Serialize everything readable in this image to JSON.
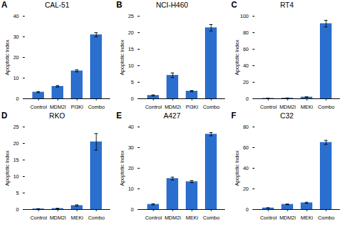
{
  "chart_data": [
    {
      "type": "bar",
      "label": "A",
      "title": "CAL-51",
      "ylabel": "Apoptotic Index",
      "categories": [
        "Control",
        "MDM2i",
        "PI3Ki",
        "Combo"
      ],
      "values": [
        3.2,
        6.0,
        13.5,
        31.0
      ],
      "errors": [
        0.3,
        0.4,
        0.5,
        1.0
      ],
      "color": "#2b6fce",
      "ylim": [
        0,
        40
      ],
      "yticks": [
        0,
        10,
        20,
        30,
        40
      ],
      "grid": false
    },
    {
      "type": "bar",
      "label": "B",
      "title": "NCI-H460",
      "ylabel": "Apoptotic Index",
      "categories": [
        "Control",
        "MDM2i",
        "PI3Ki",
        "Combo"
      ],
      "values": [
        1.0,
        7.1,
        2.3,
        21.5
      ],
      "errors": [
        0.15,
        0.7,
        0.2,
        1.0
      ],
      "color": "#2b6fce",
      "ylim": [
        0,
        25
      ],
      "yticks": [
        0,
        5,
        10,
        15,
        20,
        25
      ],
      "grid": false
    },
    {
      "type": "bar",
      "label": "C",
      "title": "RT4",
      "ylabel": "Apoptotic Index",
      "categories": [
        "Control",
        "MDM2i",
        "MEKi",
        "Combo"
      ],
      "values": [
        0.5,
        0.8,
        2.0,
        91.0
      ],
      "errors": [
        0.1,
        0.1,
        0.3,
        4.0
      ],
      "color": "#2b6fce",
      "ylim": [
        0,
        100
      ],
      "yticks": [
        0,
        20,
        40,
        60,
        80,
        100
      ],
      "grid": false
    },
    {
      "type": "bar",
      "label": "D",
      "title": "RKO",
      "ylabel": "Apoptotic Index",
      "categories": [
        "Control",
        "MDM2i",
        "MEKi",
        "Combo"
      ],
      "values": [
        0.2,
        0.3,
        1.2,
        20.5
      ],
      "errors": [
        0.05,
        0.05,
        0.2,
        2.5
      ],
      "color": "#2b6fce",
      "ylim": [
        0,
        25
      ],
      "yticks": [
        0,
        5,
        10,
        15,
        20,
        25
      ],
      "grid": false
    },
    {
      "type": "bar",
      "label": "E",
      "title": "A427",
      "ylabel": "Apoptotic Index",
      "categories": [
        "Control",
        "MDM2i",
        "MEKi",
        "Combo"
      ],
      "values": [
        2.5,
        15.0,
        13.5,
        36.5
      ],
      "errors": [
        0.3,
        0.7,
        0.5,
        0.8
      ],
      "color": "#2b6fce",
      "ylim": [
        0,
        40
      ],
      "yticks": [
        0,
        10,
        20,
        30,
        40
      ],
      "grid": false
    },
    {
      "type": "bar",
      "label": "F",
      "title": "C32",
      "ylabel": "Apoptotic Index",
      "categories": [
        "Control",
        "MDM2i",
        "MEKi",
        "Combo"
      ],
      "values": [
        1.5,
        5.0,
        6.5,
        65.0
      ],
      "errors": [
        0.2,
        0.4,
        0.5,
        2.0
      ],
      "color": "#2b6fce",
      "ylim": [
        0,
        80
      ],
      "yticks": [
        0,
        20,
        40,
        60,
        80
      ],
      "grid": false
    }
  ]
}
